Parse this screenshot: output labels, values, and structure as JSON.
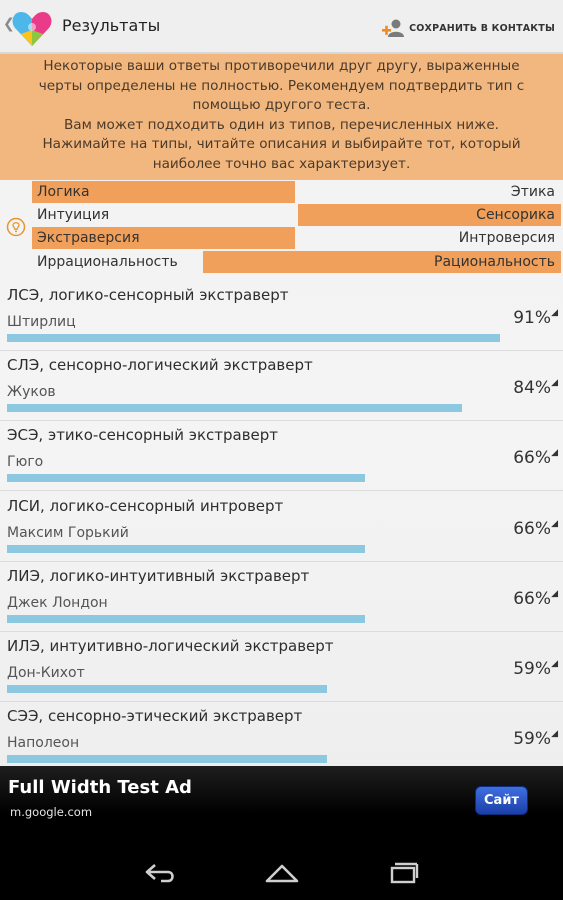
{
  "header": {
    "title": "Результаты",
    "save_label": "СОХРАНИТЬ В КОНТАКТЫ",
    "back_icon": "chevron-left-icon",
    "logo_icon": "heart-puzzle-logo",
    "save_icon": "add-contact-icon"
  },
  "notice": {
    "lines": [
      "Некоторые ваши ответы противоречили друг другу, выраженные",
      "черты определены не полностью. Рекомендуем подтвердить тип с",
      "помощью другого теста.",
      "Вам может подходить один из типов, перечисленных ниже.",
      "Нажимайте на типы, читайте описания и выбирайте тот, который",
      "наиболее точно вас характеризует."
    ],
    "background": "#f2b77e"
  },
  "traits": {
    "info_icon": "lightbulb-icon",
    "accent": "#f0a05a",
    "rows": [
      {
        "left": "Логика",
        "right": "Этика",
        "highlight": "left",
        "strength": 0.5
      },
      {
        "left": "Интуиция",
        "right": "Сенсорика",
        "highlight": "right",
        "strength": 0.5
      },
      {
        "left": "Экстраверсия",
        "right": "Интроверсия",
        "highlight": "left",
        "strength": 0.5
      },
      {
        "left": "Иррациональность",
        "right": "Рациональность",
        "highlight": "right",
        "strength": 0.68
      }
    ]
  },
  "results": [
    {
      "title": "ЛСЭ, логико-сенсорный экстраверт",
      "person": "Штирлиц",
      "percent": "91%",
      "value": 91
    },
    {
      "title": "СЛЭ, сенсорно-логический экстраверт",
      "person": "Жуков",
      "percent": "84%",
      "value": 84
    },
    {
      "title": "ЭСЭ, этико-сенсорный экстраверт",
      "person": "Гюго",
      "percent": "66%",
      "value": 66
    },
    {
      "title": "ЛСИ, логико-сенсорный интроверт",
      "person": "Максим Горький",
      "percent": "66%",
      "value": 66
    },
    {
      "title": "ЛИЭ, логико-интуитивный экстраверт",
      "person": "Джек Лондон",
      "percent": "66%",
      "value": 66
    },
    {
      "title": "ИЛЭ, интуитивно-логический экстраверт",
      "person": "Дон-Кихот",
      "percent": "59%",
      "value": 59
    },
    {
      "title": "СЭЭ, сенсорно-этический экстраверт",
      "person": "Наполеон",
      "percent": "59%",
      "value": 59
    }
  ],
  "ad": {
    "title": "Full Width Test Ad",
    "url": "m.google.com",
    "button": "Сайт"
  },
  "navbar": {
    "back_icon": "nav-back-icon",
    "home_icon": "nav-home-icon",
    "recents_icon": "nav-recents-icon"
  }
}
